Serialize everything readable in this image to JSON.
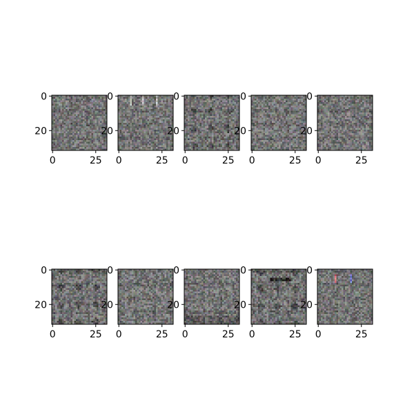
{
  "figure": {
    "panel_count": 10,
    "rows": 2,
    "cols": 5,
    "x_tick_labels": [
      "0",
      "25"
    ],
    "y_tick_labels": [
      "0",
      "20"
    ],
    "image_grid_size": 32,
    "panel_descriptions": [
      "noisy grey grid pattern",
      "noisy grey grid pattern with bright vertical streaks",
      "noisy grey grid with dark blobs",
      "noisy grey grid with faint horizontal band",
      "noisy grey grid with dark blobs",
      "noisy grey grid pattern",
      "noisy grey grid with dark lower row blobs",
      "noisy grey grid with darker bottom",
      "noisy grey grid with dark horizontal bar near top",
      "noisy grey grid with colored (red/blue) streaks near top"
    ]
  }
}
